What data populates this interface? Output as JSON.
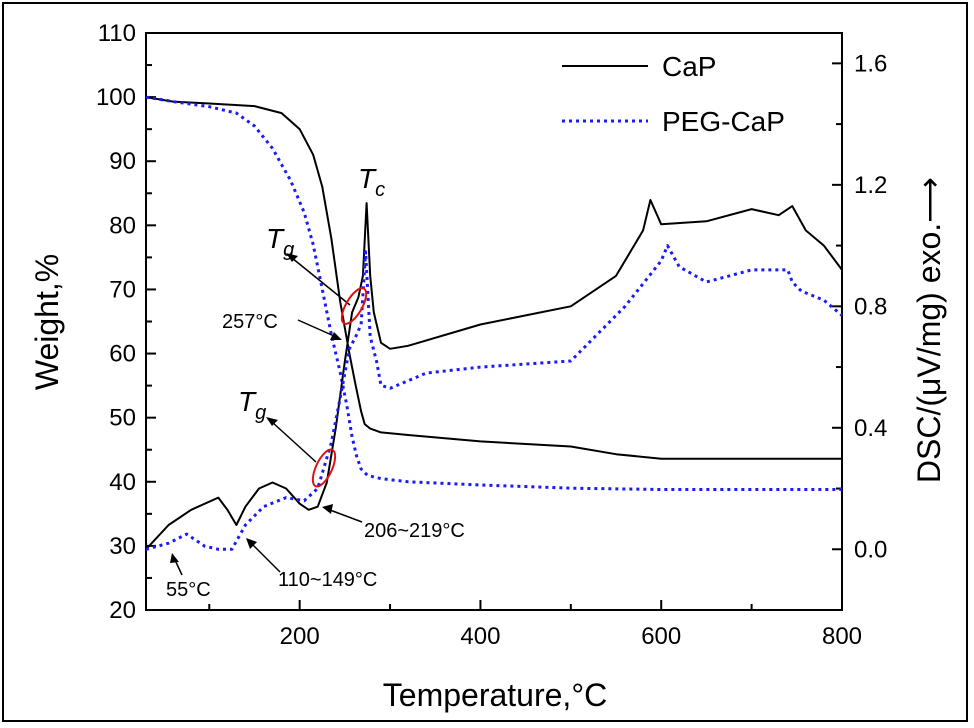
{
  "chart_data": {
    "type": "line",
    "xlabel": "Temperature,°C",
    "ylabel": "Weight,%",
    "y2label": "DSC/(μV/mg)  exo.⟶",
    "xlim": [
      30,
      800
    ],
    "ylim": [
      20,
      110
    ],
    "y2lim": [
      -0.2,
      1.7
    ],
    "xticks": [
      200,
      400,
      600,
      800
    ],
    "yticks": [
      20,
      30,
      40,
      50,
      60,
      70,
      80,
      90,
      100,
      110
    ],
    "y2ticks": [
      "0.0",
      "0.4",
      "0.8",
      "1.2",
      "1.6"
    ],
    "y2tick_values": [
      0.0,
      0.4,
      0.8,
      1.2,
      1.6
    ],
    "legend": {
      "position": "top-right",
      "entries": [
        "CaP",
        "PEG-CaP"
      ]
    },
    "series": [
      {
        "name": "CaP",
        "kind": "TG",
        "axis": "left",
        "color": "#000000",
        "style": "solid",
        "x": [
          30,
          60,
          100,
          150,
          180,
          200,
          215,
          225,
          235,
          245,
          255,
          262,
          268,
          272,
          278,
          290,
          320,
          400,
          500,
          550,
          600,
          700,
          800
        ],
        "y": [
          100,
          99.3,
          99,
          98.6,
          97.5,
          95,
          91,
          86,
          78,
          68,
          60,
          55,
          51,
          49,
          48.3,
          47.7,
          47.3,
          46.3,
          45.5,
          44.3,
          43.6,
          43.6,
          43.6
        ]
      },
      {
        "name": "PEG-CaP",
        "kind": "TG",
        "axis": "left",
        "color": "#1a1aff",
        "style": "dotted",
        "x": [
          30,
          60,
          100,
          130,
          150,
          170,
          190,
          205,
          215,
          225,
          235,
          245,
          252,
          258,
          263,
          268,
          275,
          290,
          320,
          400,
          500,
          600,
          700,
          800
        ],
        "y": [
          100,
          99.3,
          98.5,
          97.5,
          95.5,
          92,
          87,
          82,
          77,
          70,
          63,
          57,
          52,
          47,
          44,
          42,
          41,
          40.5,
          40,
          39.5,
          39,
          38.8,
          38.8,
          38.8
        ]
      },
      {
        "name": "CaP",
        "kind": "DSC",
        "axis": "right",
        "color": "#000000",
        "style": "solid",
        "x": [
          30,
          55,
          80,
          110,
          120,
          130,
          140,
          155,
          170,
          185,
          200,
          210,
          220,
          230,
          240,
          250,
          258,
          265,
          270,
          274,
          278,
          282,
          290,
          300,
          320,
          400,
          500,
          550,
          580,
          588,
          600,
          650,
          700,
          730,
          745,
          760,
          780,
          800
        ],
        "y": [
          0.0,
          0.08,
          0.13,
          0.17,
          0.13,
          0.08,
          0.14,
          0.2,
          0.22,
          0.2,
          0.15,
          0.13,
          0.14,
          0.22,
          0.4,
          0.62,
          0.78,
          0.83,
          0.9,
          1.14,
          0.9,
          0.78,
          0.68,
          0.66,
          0.67,
          0.74,
          0.8,
          0.9,
          1.05,
          1.15,
          1.07,
          1.08,
          1.12,
          1.1,
          1.13,
          1.05,
          1.0,
          0.92
        ]
      },
      {
        "name": "PEG-CaP",
        "kind": "DSC",
        "axis": "right",
        "color": "#1a1aff",
        "style": "dotted",
        "x": [
          30,
          55,
          75,
          95,
          110,
          125,
          140,
          160,
          185,
          205,
          220,
          235,
          245,
          255,
          262,
          268,
          273,
          278,
          285,
          290,
          300,
          340,
          400,
          500,
          560,
          600,
          607,
          620,
          650,
          700,
          740,
          745,
          755,
          780,
          800
        ],
        "y": [
          0.0,
          0.02,
          0.05,
          0.01,
          0.0,
          0.0,
          0.08,
          0.14,
          0.17,
          0.16,
          0.2,
          0.35,
          0.5,
          0.66,
          0.7,
          0.74,
          0.98,
          0.7,
          0.62,
          0.54,
          0.53,
          0.58,
          0.6,
          0.62,
          0.8,
          0.95,
          1.0,
          0.93,
          0.88,
          0.92,
          0.92,
          0.88,
          0.85,
          0.82,
          0.77
        ]
      }
    ],
    "annotations": [
      {
        "label": "T",
        "sub": "c"
      },
      {
        "label": "T",
        "sub": "g"
      },
      {
        "label": "T",
        "sub": "g"
      },
      {
        "label": "257°C"
      },
      {
        "label": "206~219°C"
      },
      {
        "label": "55°C"
      },
      {
        "label": "110~149°C"
      }
    ]
  }
}
